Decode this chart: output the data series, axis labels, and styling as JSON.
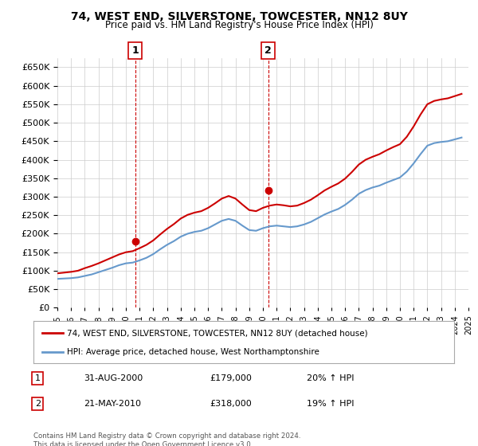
{
  "title": "74, WEST END, SILVERSTONE, TOWCESTER, NN12 8UY",
  "subtitle": "Price paid vs. HM Land Registry's House Price Index (HPI)",
  "xlim": [
    1995,
    2025
  ],
  "ylim": [
    0,
    675000
  ],
  "yticks": [
    0,
    50000,
    100000,
    150000,
    200000,
    250000,
    300000,
    350000,
    400000,
    450000,
    500000,
    550000,
    600000,
    650000
  ],
  "xticks": [
    1995,
    1996,
    1997,
    1998,
    1999,
    2000,
    2001,
    2002,
    2003,
    2004,
    2005,
    2006,
    2007,
    2008,
    2009,
    2010,
    2011,
    2012,
    2013,
    2014,
    2015,
    2016,
    2017,
    2018,
    2019,
    2020,
    2021,
    2022,
    2023,
    2024,
    2025
  ],
  "sale1_x": 2000.67,
  "sale1_y": 179000,
  "sale1_label": "1",
  "sale1_date": "31-AUG-2000",
  "sale1_price": "£179,000",
  "sale1_hpi": "20% ↑ HPI",
  "sale2_x": 2010.38,
  "sale2_y": 318000,
  "sale2_label": "2",
  "sale2_date": "21-MAY-2010",
  "sale2_price": "£318,000",
  "sale2_hpi": "19% ↑ HPI",
  "property_color": "#cc0000",
  "hpi_color": "#6699cc",
  "vline_color": "#cc0000",
  "grid_color": "#cccccc",
  "bg_color": "#ffffff",
  "legend_line1": "74, WEST END, SILVERSTONE, TOWCESTER, NN12 8UY (detached house)",
  "legend_line2": "HPI: Average price, detached house, West Northamptonshire",
  "footnote": "Contains HM Land Registry data © Crown copyright and database right 2024.\nThis data is licensed under the Open Government Licence v3.0.",
  "hpi_data_x": [
    1995,
    1995.5,
    1996,
    1996.5,
    1997,
    1997.5,
    1998,
    1998.5,
    1999,
    1999.5,
    2000,
    2000.5,
    2001,
    2001.5,
    2002,
    2002.5,
    2003,
    2003.5,
    2004,
    2004.5,
    2005,
    2005.5,
    2006,
    2006.5,
    2007,
    2007.5,
    2008,
    2008.5,
    2009,
    2009.5,
    2010,
    2010.5,
    2011,
    2011.5,
    2012,
    2012.5,
    2013,
    2013.5,
    2014,
    2014.5,
    2015,
    2015.5,
    2016,
    2016.5,
    2017,
    2017.5,
    2018,
    2018.5,
    2019,
    2019.5,
    2020,
    2020.5,
    2021,
    2021.5,
    2022,
    2022.5,
    2023,
    2023.5,
    2024,
    2024.5
  ],
  "hpi_data_y": [
    78000,
    79000,
    80000,
    82000,
    86000,
    90000,
    96000,
    102000,
    108000,
    115000,
    120000,
    122000,
    128000,
    135000,
    145000,
    158000,
    170000,
    180000,
    192000,
    200000,
    205000,
    208000,
    215000,
    225000,
    235000,
    240000,
    235000,
    222000,
    210000,
    208000,
    215000,
    220000,
    222000,
    220000,
    218000,
    220000,
    225000,
    232000,
    242000,
    252000,
    260000,
    267000,
    278000,
    292000,
    308000,
    318000,
    325000,
    330000,
    338000,
    345000,
    352000,
    368000,
    390000,
    415000,
    438000,
    445000,
    448000,
    450000,
    455000,
    460000
  ],
  "prop_data_x": [
    1995,
    1995.5,
    1996,
    1996.5,
    1997,
    1997.5,
    1998,
    1998.5,
    1999,
    1999.5,
    2000,
    2000.5,
    2001,
    2001.5,
    2002,
    2002.5,
    2003,
    2003.5,
    2004,
    2004.5,
    2005,
    2005.5,
    2006,
    2006.5,
    2007,
    2007.5,
    2008,
    2008.5,
    2009,
    2009.5,
    2010,
    2010.5,
    2011,
    2011.5,
    2012,
    2012.5,
    2013,
    2013.5,
    2014,
    2014.5,
    2015,
    2015.5,
    2016,
    2016.5,
    2017,
    2017.5,
    2018,
    2018.5,
    2019,
    2019.5,
    2020,
    2020.5,
    2021,
    2021.5,
    2022,
    2022.5,
    2023,
    2023.5,
    2024,
    2024.5
  ],
  "prop_data_y": [
    93000,
    95000,
    97000,
    100000,
    107000,
    113000,
    120000,
    128000,
    136000,
    144000,
    150000,
    153000,
    161000,
    170000,
    182000,
    198000,
    213000,
    226000,
    241000,
    251000,
    257000,
    261000,
    270000,
    282000,
    295000,
    302000,
    295000,
    279000,
    264000,
    261000,
    270000,
    276000,
    279000,
    277000,
    274000,
    276000,
    283000,
    292000,
    304000,
    317000,
    327000,
    336000,
    349000,
    367000,
    387000,
    400000,
    408000,
    415000,
    425000,
    434000,
    442000,
    462000,
    490000,
    522000,
    550000,
    559000,
    563000,
    566000,
    572000,
    578000
  ]
}
